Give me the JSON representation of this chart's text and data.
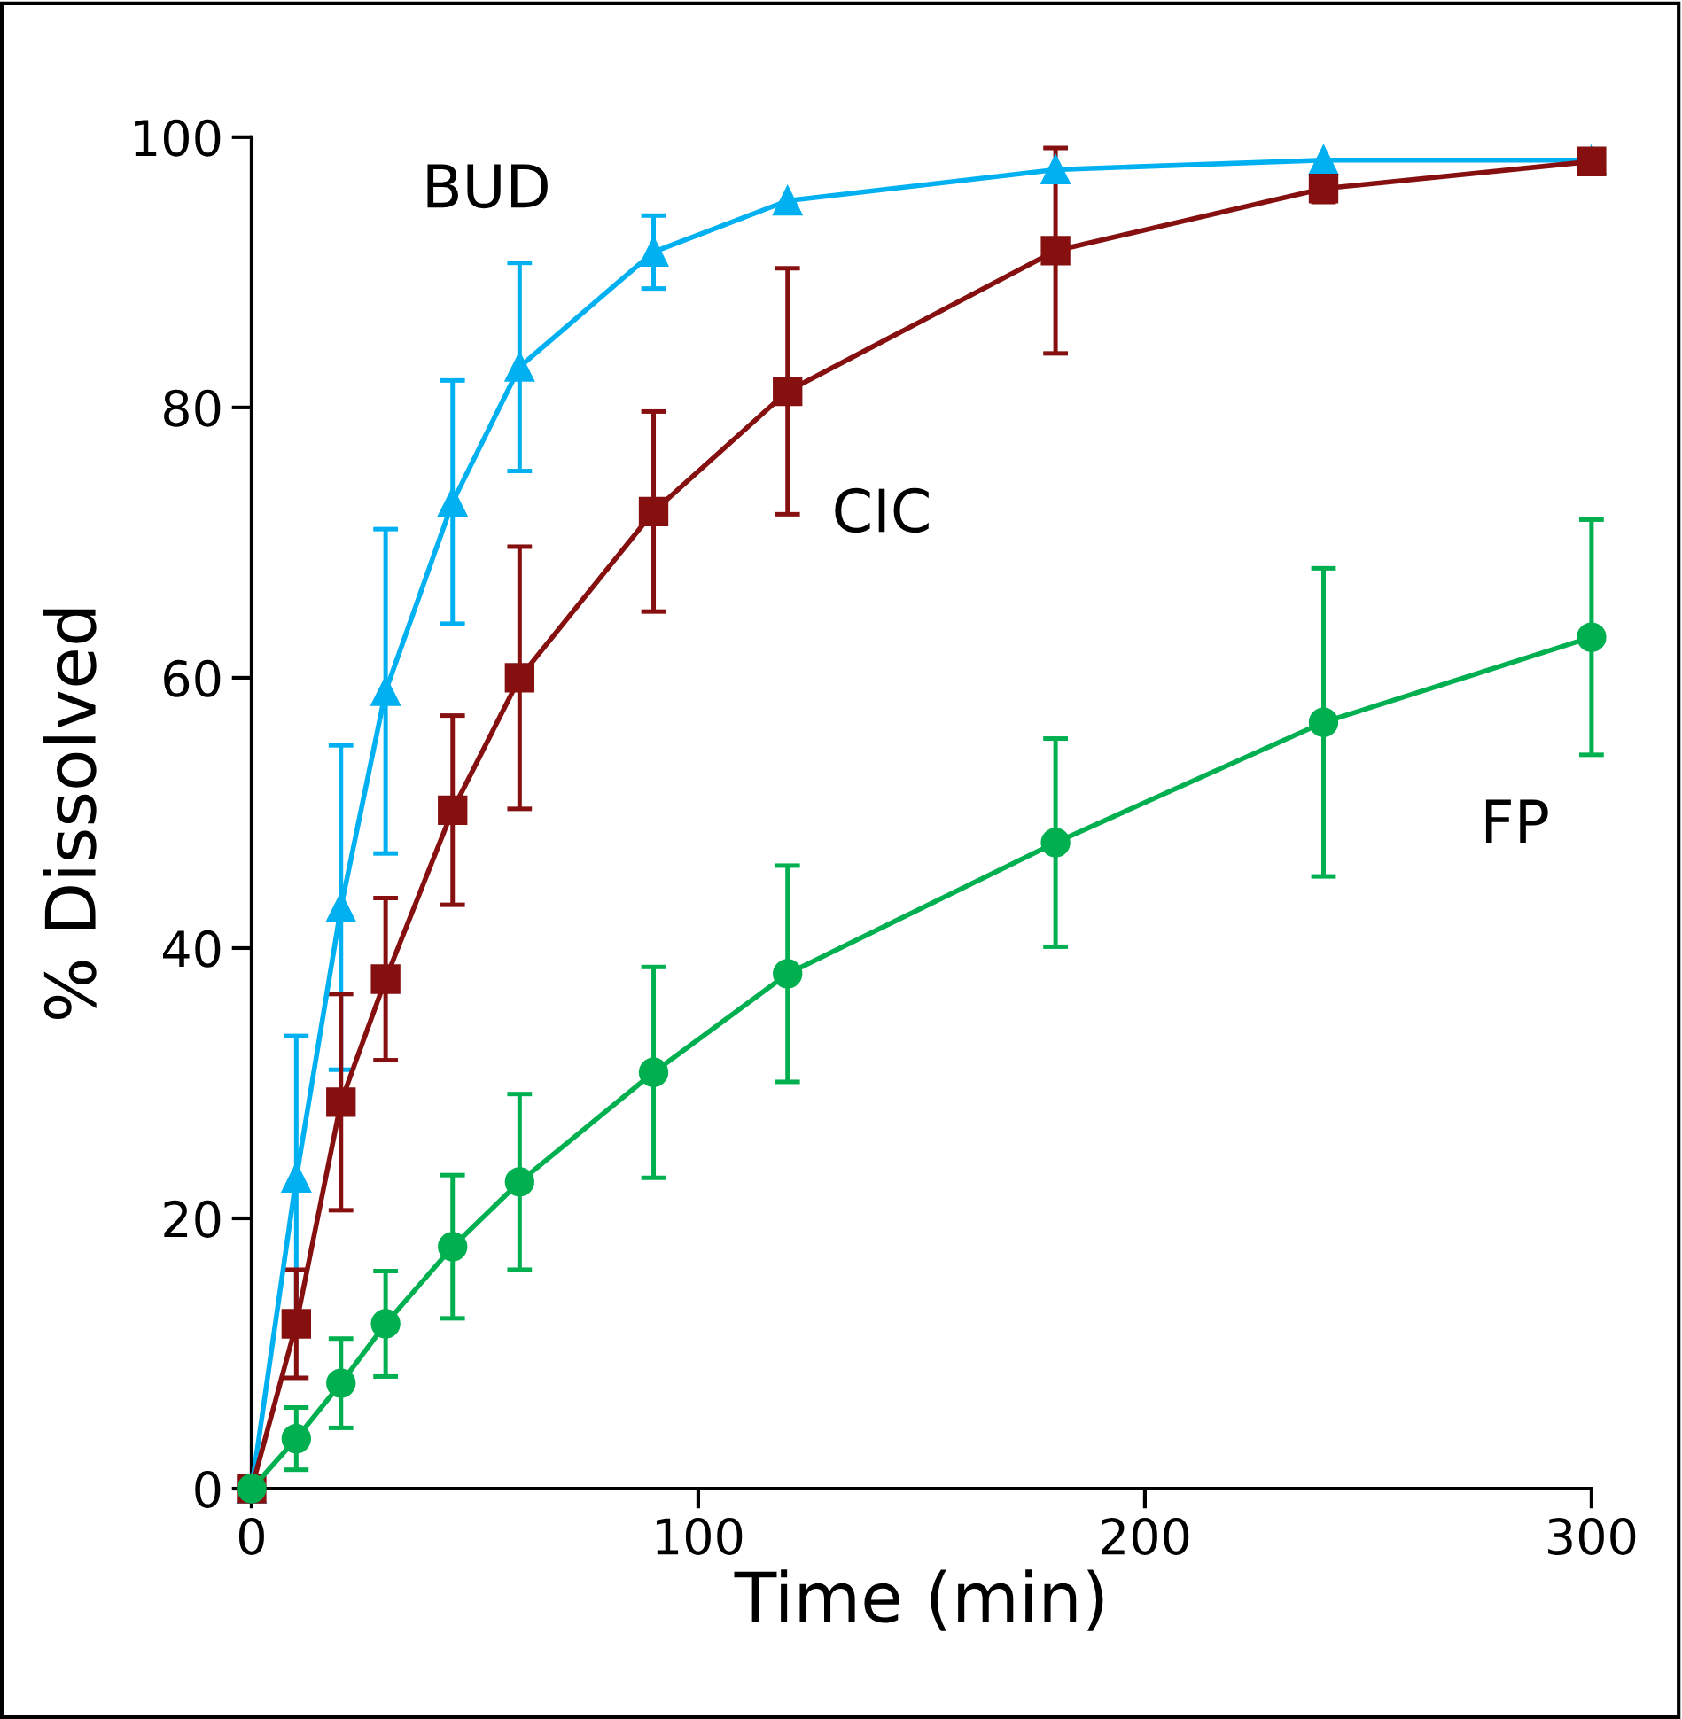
{
  "chart_data": {
    "type": "line",
    "xlabel": "Time (min)",
    "ylabel": "% Dissolved",
    "x": [
      0,
      10,
      20,
      30,
      45,
      60,
      90,
      120,
      180,
      240,
      300
    ],
    "xlim": [
      0,
      300
    ],
    "xticks": [
      0,
      100,
      200,
      300
    ],
    "ylim": [
      0,
      100
    ],
    "yticks": [
      0,
      20,
      40,
      60,
      80,
      100
    ],
    "grid": false,
    "legend": false,
    "line_style": "solid",
    "series": [
      {
        "name": "BUD",
        "color": "#00b0f0",
        "marker": "triangle",
        "values": [
          0,
          23,
          43,
          59,
          73,
          83,
          91.5,
          95.3,
          97.6,
          98.3,
          98.3
        ],
        "errors": [
          null,
          10.5,
          12,
          12,
          9,
          7.7,
          2.7,
          null,
          null,
          null,
          null
        ]
      },
      {
        "name": "CIC",
        "color": "#861010",
        "marker": "square",
        "values": [
          0,
          12.2,
          28.6,
          37.7,
          50.2,
          60,
          72.3,
          81.2,
          91.6,
          96.2,
          98.2
        ],
        "errors": [
          null,
          4,
          8,
          6,
          7,
          9.7,
          7.4,
          9.1,
          7.6,
          1,
          null
        ]
      },
      {
        "name": "FP",
        "color": "#00b050",
        "marker": "circle",
        "values": [
          0,
          3.7,
          7.8,
          12.2,
          17.9,
          22.7,
          30.8,
          38.1,
          47.8,
          56.7,
          63
        ],
        "errors": [
          null,
          2.3,
          3.3,
          3.9,
          5.3,
          6.5,
          7.8,
          8,
          7.7,
          11.4,
          8.7
        ]
      }
    ]
  }
}
